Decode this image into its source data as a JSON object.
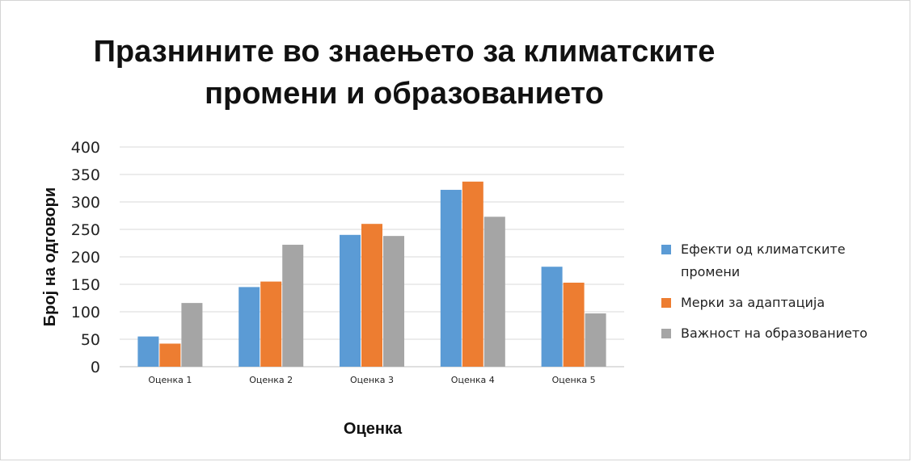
{
  "chart_data": {
    "type": "bar",
    "title_lines": [
      "Празнините во знаењето за климатските",
      "промени и образованието"
    ],
    "xlabel": "Оценка",
    "ylabel": "Број на одговори",
    "categories": [
      "Оценка 1",
      "Оценка 2",
      "Оценка 3",
      "Оценка 4",
      "Оценка 5"
    ],
    "series": [
      {
        "name": "Ефекти од климатските промени",
        "color": "#5b9bd5",
        "values": [
          55,
          145,
          240,
          322,
          182
        ]
      },
      {
        "name": "Мерки за адаптација",
        "color": "#ed7d31",
        "values": [
          42,
          155,
          260,
          337,
          153
        ]
      },
      {
        "name": "Важност на образованието",
        "color": "#a5a5a5",
        "values": [
          116,
          222,
          238,
          273,
          97
        ]
      }
    ],
    "ylim": [
      0,
      400
    ],
    "yticks": [
      0,
      50,
      100,
      150,
      200,
      250,
      300,
      350,
      400
    ],
    "grid": true,
    "legend_position": "right"
  }
}
